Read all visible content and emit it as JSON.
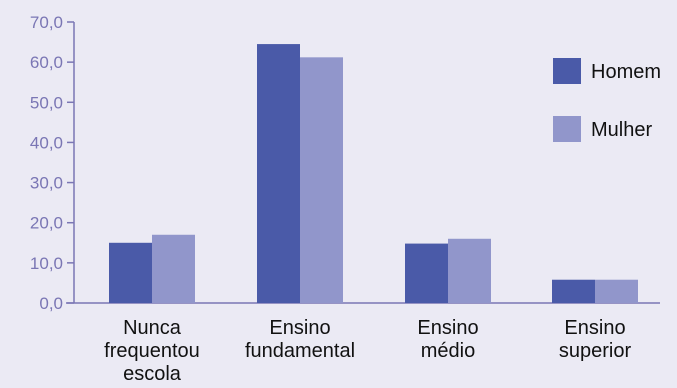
{
  "chart_data": {
    "type": "bar",
    "title": "",
    "xlabel": "",
    "ylabel": "",
    "ylim": [
      0,
      70
    ],
    "y_ticks": [
      "0,0",
      "10,0",
      "20,0",
      "30,0",
      "40,0",
      "50,0",
      "60,0",
      "70,0"
    ],
    "grid": false,
    "legend_position": "right",
    "categories": [
      [
        "Nunca",
        "frequentou",
        "escola"
      ],
      [
        "Ensino",
        "fundamental"
      ],
      [
        "Ensino",
        "médio"
      ],
      [
        "Ensino",
        "superior"
      ]
    ],
    "series": [
      {
        "name": "Homem",
        "color": "#4a5aa8",
        "values": [
          15.0,
          64.5,
          14.8,
          5.8
        ]
      },
      {
        "name": "Mulher",
        "color": "#9196cb",
        "values": [
          17.0,
          61.2,
          16.0,
          5.8
        ]
      }
    ],
    "colors": {
      "background": "#ebeaf4",
      "axis": "#7a76b4",
      "tick_text": "#7a76b4",
      "label_text": "#111111"
    }
  }
}
